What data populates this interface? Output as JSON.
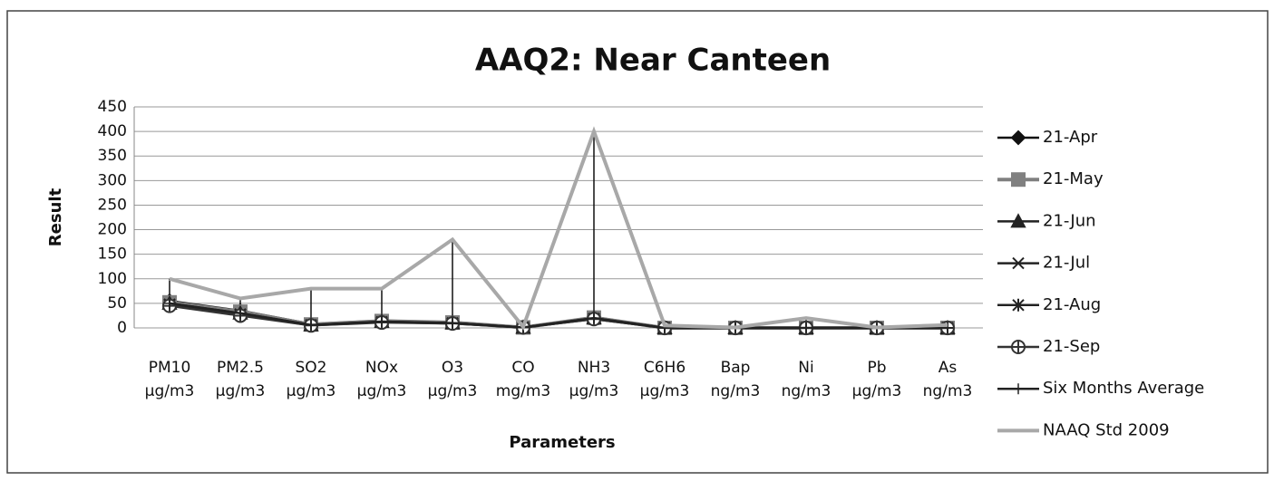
{
  "chart_data": {
    "type": "line",
    "title": "AAQ2: Near Canteen",
    "x_label": "Parameters",
    "y_label": "Result",
    "categories": [
      "PM10\nµg/m3",
      "PM2.5\nµg/m3",
      "SO2\nµg/m3",
      "NOx\nµg/m3",
      "O3\nµg/m3",
      "CO\nmg/m3",
      "NH3\nµg/m3",
      "C6H6\nµg/m3",
      "Bap\nng/m3",
      "Ni\nng/m3",
      "Pb\nµg/m3",
      "As\nng/m3"
    ],
    "series": [
      {
        "name": "21-Apr",
        "color": "#111111",
        "marker": "diamond",
        "values": [
          55,
          35,
          8,
          15,
          12,
          1,
          22,
          0,
          0,
          0,
          0,
          0
        ]
      },
      {
        "name": "21-May",
        "color": "#808080",
        "marker": "square",
        "values": [
          52,
          33,
          7,
          14,
          11,
          1,
          21,
          0,
          0,
          0,
          0,
          0
        ]
      },
      {
        "name": "21-Jun",
        "color": "#222222",
        "marker": "triangle",
        "values": [
          50,
          30,
          6,
          13,
          10,
          1,
          20,
          0,
          0,
          0,
          0,
          0
        ]
      },
      {
        "name": "21-Jul",
        "color": "#222222",
        "marker": "x",
        "values": [
          48,
          28,
          6,
          12,
          10,
          1,
          19,
          0,
          0,
          0,
          0,
          0
        ]
      },
      {
        "name": "21-Aug",
        "color": "#222222",
        "marker": "star",
        "values": [
          47,
          27,
          5,
          12,
          9,
          1,
          18,
          0,
          0,
          0,
          0,
          0
        ]
      },
      {
        "name": "21-Sep",
        "color": "#333333",
        "marker": "circleplus",
        "values": [
          45,
          25,
          5,
          11,
          9,
          1,
          18,
          0,
          0,
          0,
          0,
          0
        ]
      },
      {
        "name": "Six Months Average",
        "color": "#222222",
        "marker": "plus",
        "values": [
          50,
          30,
          6,
          13,
          10,
          1,
          20,
          0,
          0,
          0,
          0,
          0
        ]
      },
      {
        "name": "NAAQ Std 2009",
        "color": "#a8a8a8",
        "marker": "none",
        "values": [
          100,
          60,
          80,
          80,
          180,
          2,
          400,
          5,
          1,
          20,
          1,
          6
        ]
      }
    ],
    "ylim": [
      0,
      450
    ],
    "yticks": [
      0,
      50,
      100,
      150,
      200,
      250,
      300,
      350,
      400,
      450
    ],
    "grid": true,
    "legend": "right"
  }
}
